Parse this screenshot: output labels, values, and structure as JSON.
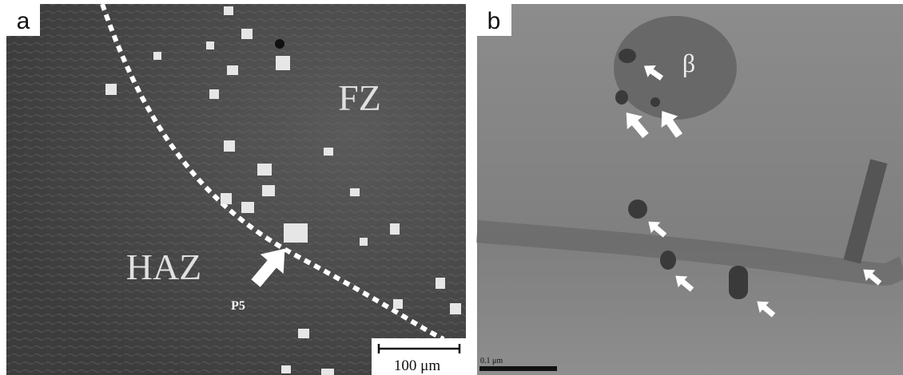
{
  "panels": [
    {
      "label": "a",
      "annotations": [
        "FZ",
        "HAZ",
        "P5"
      ],
      "scale_bar": "100 μm"
    },
    {
      "label": "b",
      "annotations": [
        "β"
      ],
      "scale_bar": "0.1 μm"
    }
  ]
}
